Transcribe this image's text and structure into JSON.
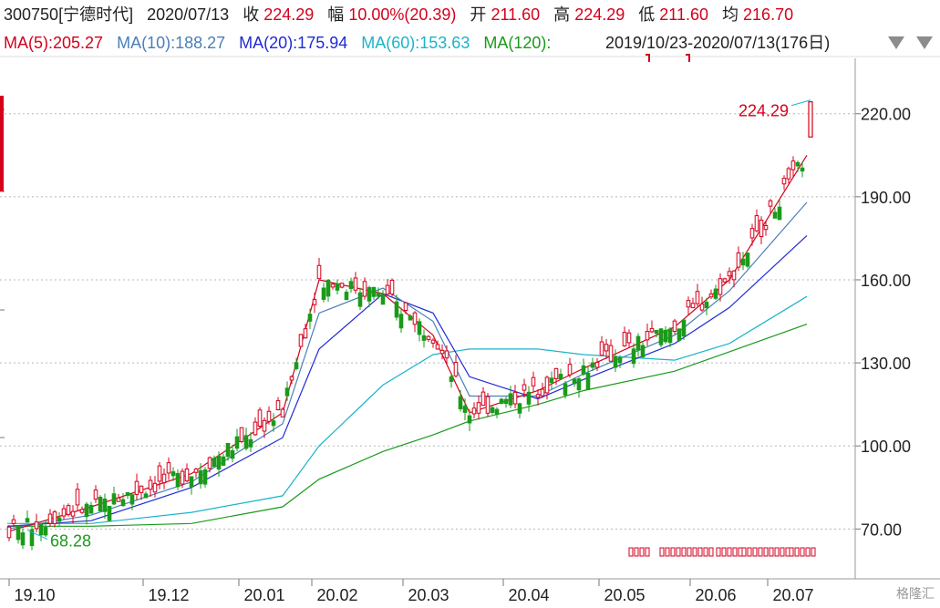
{
  "header": {
    "code_name": "300750[宁德时代]",
    "date": "2020/07/13",
    "close_label": "收",
    "close_value": "224.29",
    "change_label": "幅",
    "change_value": "10.00%(20.39)",
    "open_label": "开",
    "open_value": "211.60",
    "high_label": "高",
    "high_value": "224.29",
    "low_label": "低",
    "low_value": "211.60",
    "avg_label": "均",
    "avg_value": "216.70"
  },
  "ma_legend": [
    {
      "label": "MA(5):205.27",
      "color": "#d4001c"
    },
    {
      "label": "MA(10):188.27",
      "color": "#4a7fb8"
    },
    {
      "label": "MA(20):175.94",
      "color": "#1f2bd6"
    },
    {
      "label": "MA(60):153.63",
      "color": "#1bb4c9"
    },
    {
      "label": "MA(120):",
      "color": "#1a9a1a"
    }
  ],
  "range_text": "2019/10/23-2020/07/13(176日)",
  "watermark": "格隆汇",
  "colors": {
    "up": "#d4001c",
    "down": "#1a9a1a",
    "ma5": "#d4001c",
    "ma10": "#4a7fb8",
    "ma20": "#1f2bd6",
    "ma60": "#1bb4c9",
    "ma120": "#1a9a1a",
    "grid": "#b8b8b8"
  },
  "chart_data": {
    "type": "line",
    "title": "",
    "xlabel": "",
    "ylabel": "",
    "ylim": [
      52,
      240
    ],
    "y_ticks": [
      "70.00",
      "100.00",
      "130.00",
      "160.00",
      "190.00",
      "220.00"
    ],
    "x_ticks": [
      "19.10",
      "19.12",
      "20.01",
      "20.02",
      "20.03",
      "20.04",
      "20.05",
      "20.06",
      "20.07"
    ],
    "annotations": {
      "high_label": "224.29",
      "low_label": "68.28"
    },
    "series": [
      {
        "name": "MA(5)",
        "x": [
          "19.10",
          "19.11",
          "19.12",
          "20.01",
          "20.02",
          "20.02",
          "20.03",
          "20.03",
          "20.04",
          "20.04",
          "20.05",
          "20.06",
          "20.07"
        ],
        "values": [
          69,
          78,
          90,
          112,
          160,
          155,
          140,
          112,
          120,
          128,
          143,
          160,
          205
        ]
      },
      {
        "name": "MA(10)",
        "x": [
          "19.10",
          "19.11",
          "19.12",
          "20.01",
          "20.02",
          "20.02",
          "20.03",
          "20.03",
          "20.04",
          "20.04",
          "20.05",
          "20.06",
          "20.07"
        ],
        "values": [
          70,
          75,
          87,
          108,
          148,
          157,
          145,
          118,
          118,
          126,
          140,
          156,
          188
        ]
      },
      {
        "name": "MA(20)",
        "x": [
          "19.10",
          "19.11",
          "19.12",
          "20.01",
          "20.02",
          "20.02",
          "20.03",
          "20.03",
          "20.04",
          "20.04",
          "20.05",
          "20.06",
          "20.07"
        ],
        "values": [
          71,
          73,
          85,
          103,
          135,
          155,
          148,
          125,
          117,
          124,
          137,
          150,
          176
        ]
      },
      {
        "name": "MA(60)",
        "x": [
          "19.10",
          "19.11",
          "19.12",
          "20.01",
          "20.02",
          "20.02",
          "20.03",
          "20.03",
          "20.04",
          "20.04",
          "20.05",
          "20.06",
          "20.07"
        ],
        "values": [
          72,
          72,
          76,
          82,
          100,
          122,
          133,
          135,
          135,
          133,
          131,
          137,
          154
        ]
      },
      {
        "name": "MA(120)",
        "x": [
          "19.10",
          "19.11",
          "19.12",
          "20.01",
          "20.02",
          "20.02",
          "20.03",
          "20.03",
          "20.04",
          "20.04",
          "20.05",
          "20.06",
          "20.07"
        ],
        "values": [
          71,
          71,
          72,
          78,
          88,
          98,
          104,
          109,
          115,
          120,
          127,
          134,
          144
        ]
      }
    ]
  }
}
